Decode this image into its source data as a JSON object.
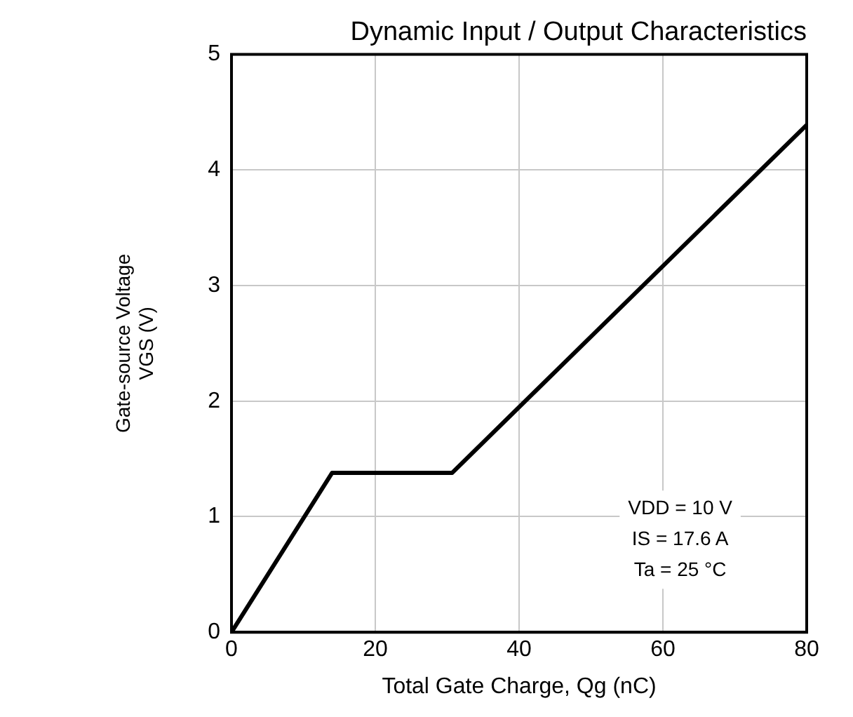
{
  "chart_data": {
    "type": "line",
    "title": "Dynamic Input / Output Characteristics",
    "xlabel": "Total Gate Charge, Qg (nC)",
    "ylabel": "Gate-source Voltage\nVGS (V)",
    "x": [
      0,
      14,
      30.7,
      80
    ],
    "series": [
      {
        "color": "#000000",
        "values": [
          0,
          1.38,
          1.38,
          4.39
        ]
      }
    ],
    "xlim": [
      0,
      80
    ],
    "xticks": [
      0,
      20,
      40,
      60,
      80
    ],
    "ylim": [
      0,
      5
    ],
    "yticks": [
      0,
      1,
      2,
      3,
      4,
      5
    ],
    "grid": true,
    "legend": false,
    "marker": "none",
    "line_style": "solid",
    "annotations": [
      "VDD = 10 V",
      "IS = 17.6 A",
      "Ta = 25 °C"
    ]
  }
}
